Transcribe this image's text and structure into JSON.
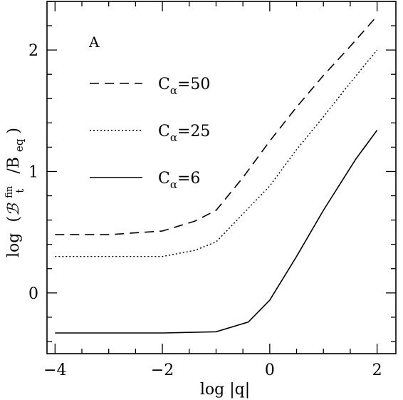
{
  "chart_data": {
    "type": "line",
    "panel_label": "A",
    "xlabel": "log |q|",
    "ylabel": {
      "prefix": "log",
      "main_symbol": "ℬ",
      "superscript": "fin",
      "subscript": "t",
      "divider": "/B",
      "divider_subscript": "eq"
    },
    "xlim": [
      -4.15,
      2.35
    ],
    "ylim": [
      -0.5,
      2.4
    ],
    "x_ticks": [
      -4,
      -2,
      0,
      2
    ],
    "x_tick_labels": [
      "−4",
      "−2",
      "0",
      "2"
    ],
    "y_ticks": [
      0,
      1,
      2
    ],
    "y_tick_labels": [
      "0",
      "1",
      "2"
    ],
    "x_minor_step": 0.5,
    "y_minor_step": 0.2,
    "grid": false,
    "legend_position": "top-left",
    "series": [
      {
        "name_base": "C",
        "name_sub": "α",
        "name_value": "=50",
        "style": "dashed",
        "x": [
          -4,
          -3,
          -2,
          -1.4,
          -1,
          -0.5,
          0,
          0.5,
          1,
          1.5,
          2
        ],
        "y": [
          0.48,
          0.48,
          0.51,
          0.59,
          0.68,
          0.95,
          1.25,
          1.53,
          1.79,
          2.03,
          2.28
        ]
      },
      {
        "name_base": "C",
        "name_sub": "α",
        "name_value": "=25",
        "style": "dotted",
        "x": [
          -4,
          -3,
          -2,
          -1.4,
          -1,
          -0.5,
          0,
          0.5,
          1,
          1.5,
          2
        ],
        "y": [
          0.3,
          0.3,
          0.3,
          0.35,
          0.42,
          0.65,
          0.88,
          1.18,
          1.45,
          1.73,
          2.0
        ]
      },
      {
        "name_base": "C",
        "name_sub": "α",
        "name_value": "=6",
        "style": "solid",
        "x": [
          -4,
          -3,
          -2,
          -1,
          -0.4,
          0,
          0.5,
          1,
          1.6,
          2
        ],
        "y": [
          -0.33,
          -0.33,
          -0.33,
          -0.32,
          -0.24,
          -0.06,
          0.3,
          0.68,
          1.1,
          1.34
        ]
      }
    ]
  }
}
